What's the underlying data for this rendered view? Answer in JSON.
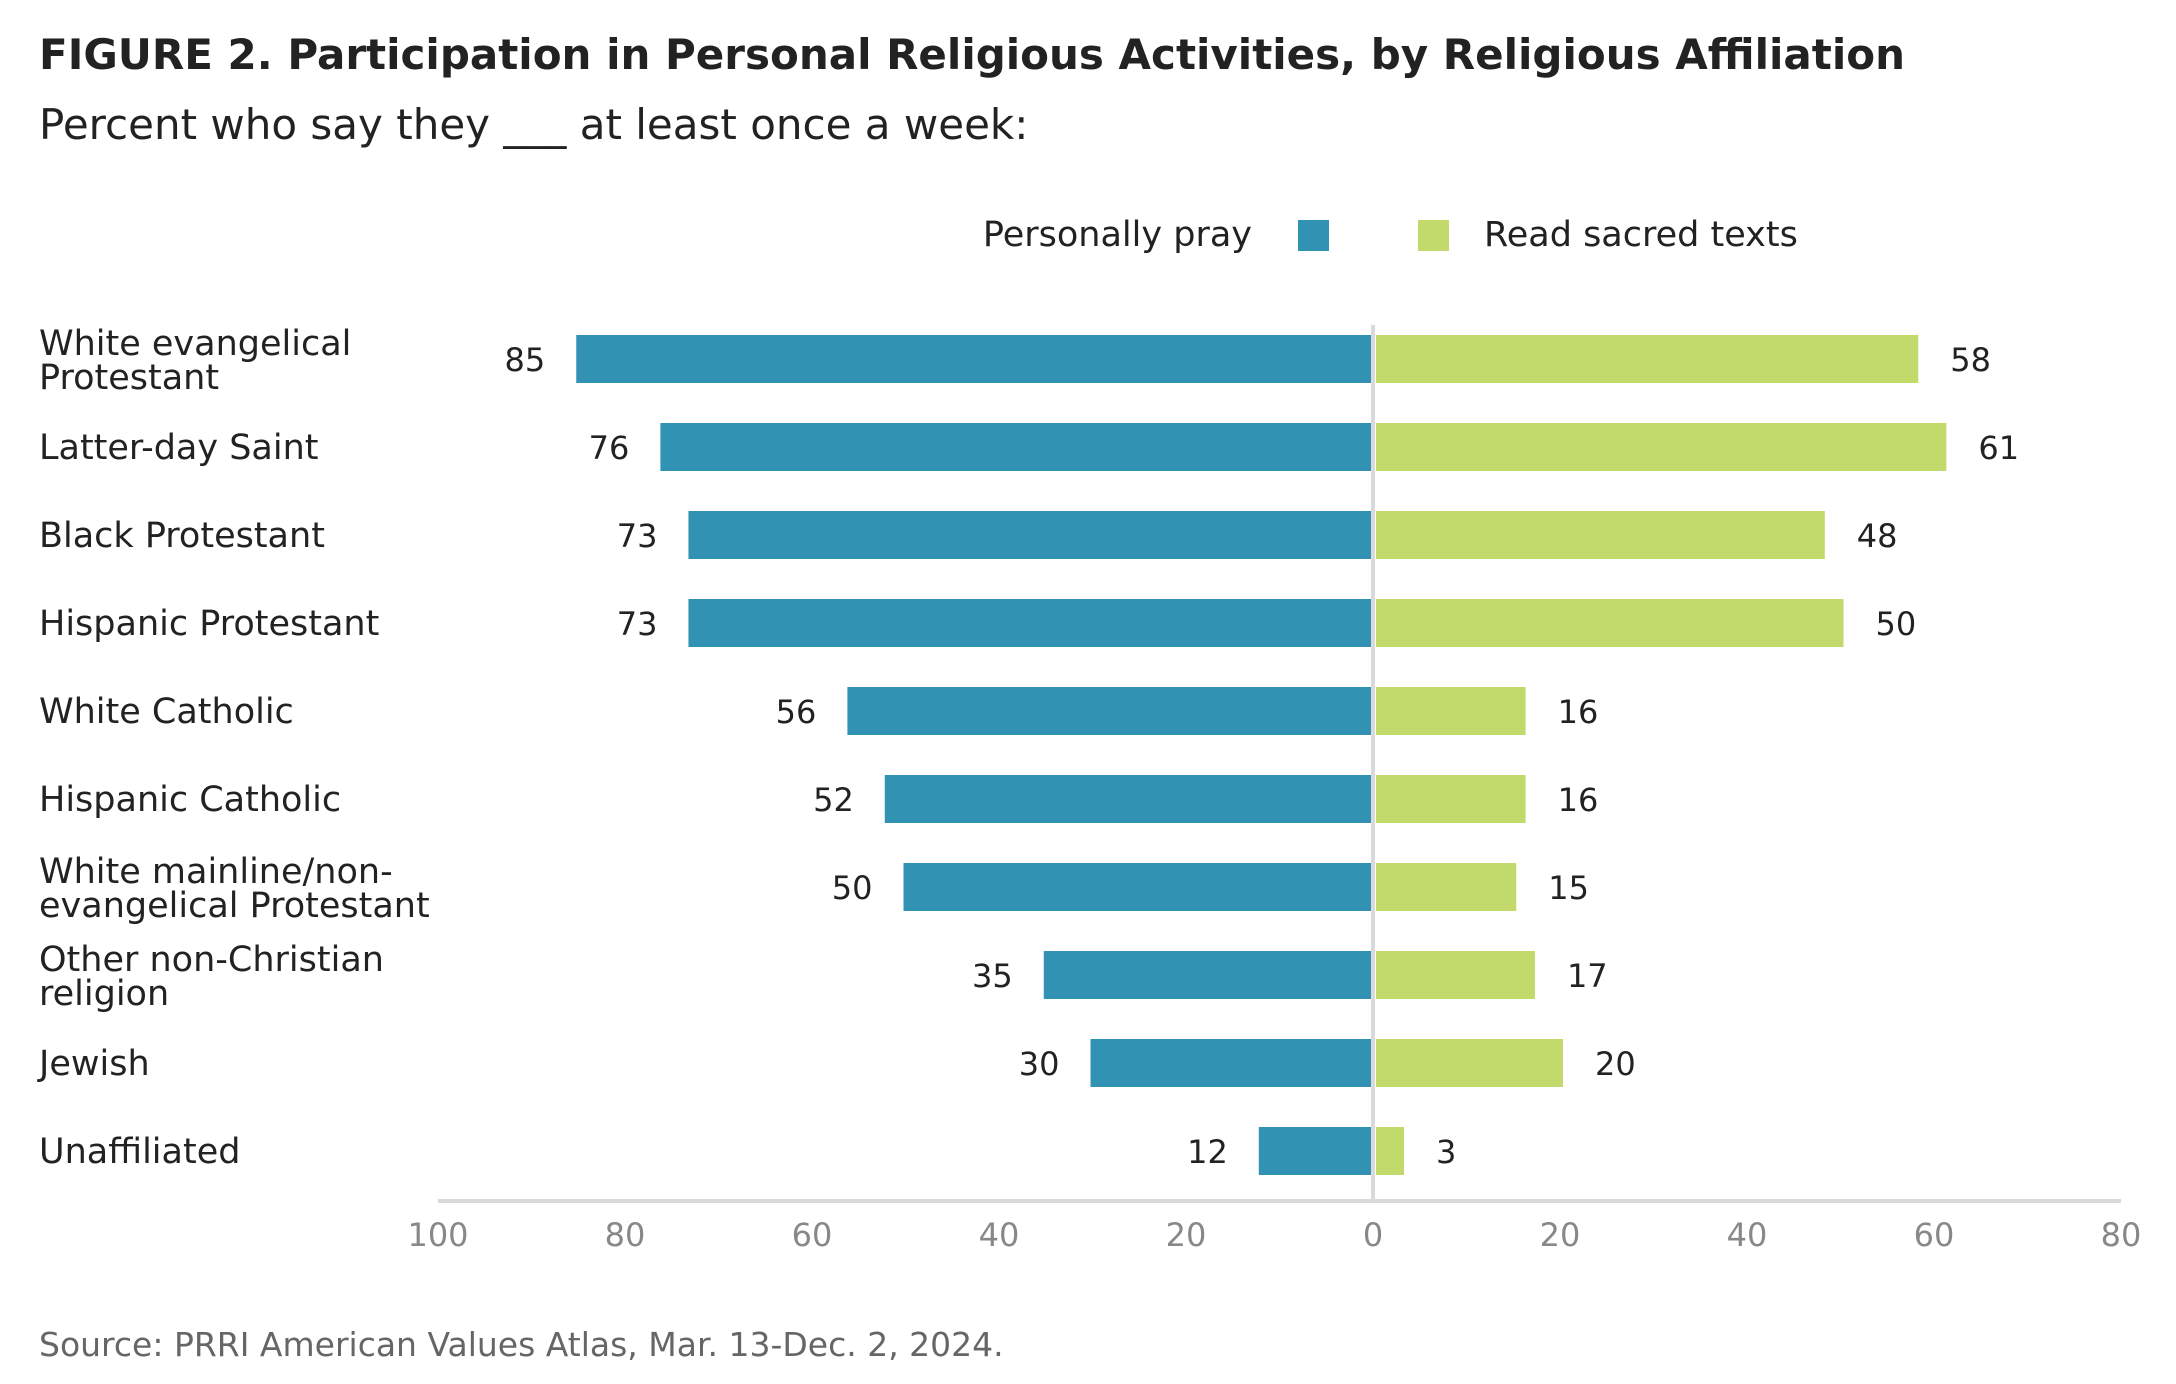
{
  "title": "FIGURE 2.  Participation in Personal Religious Activities, by Religious Affiliation",
  "subtitle": "Percent who say they ___ at least once a week:",
  "source": "Source: PRRI American Values Atlas, Mar. 13-Dec. 2, 2024.",
  "colors": {
    "pray": "#3292b3",
    "read": "#c2da6b",
    "axis": "#d9d9d9",
    "tick_text": "#888888"
  },
  "chart_data": {
    "type": "bar",
    "orientation": "horizontal-diverging",
    "legend_placement": "top",
    "grid": false,
    "categories": [
      [
        "White evangelical",
        "Protestant"
      ],
      [
        "Latter-day Saint"
      ],
      [
        "Black Protestant"
      ],
      [
        "Hispanic Protestant"
      ],
      [
        "White Catholic"
      ],
      [
        "Hispanic Catholic"
      ],
      [
        "White mainline/non-",
        "evangelical Protestant"
      ],
      [
        "Other non-Christian",
        "religion"
      ],
      [
        "Jewish"
      ],
      [
        "Unaffiliated"
      ]
    ],
    "series": [
      {
        "name": "Personally pray",
        "side": "left",
        "values": [
          85,
          76,
          73,
          73,
          56,
          52,
          50,
          35,
          30,
          12
        ]
      },
      {
        "name": "Read sacred texts",
        "side": "right",
        "values": [
          58,
          61,
          48,
          50,
          16,
          16,
          15,
          17,
          20,
          3
        ]
      }
    ],
    "xlim_left": [
      100,
      0
    ],
    "xlim_right": [
      0,
      80
    ],
    "xticks": [
      "100",
      "80",
      "60",
      "40",
      "20",
      "0",
      "20",
      "40",
      "60",
      "80"
    ]
  }
}
